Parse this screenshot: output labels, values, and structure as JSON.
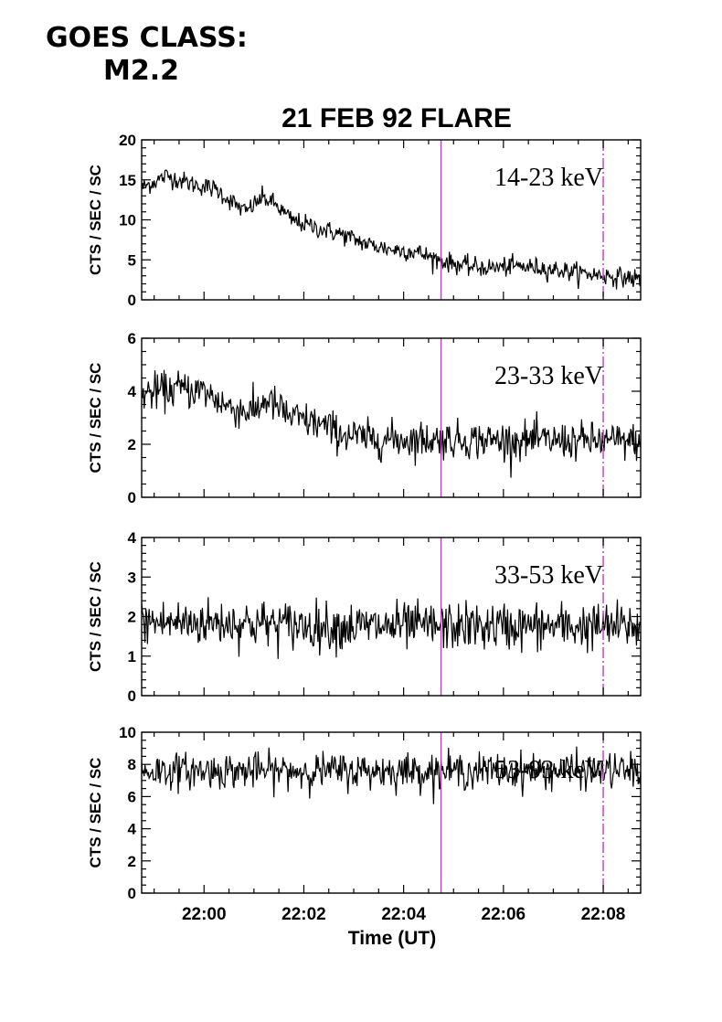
{
  "goes": {
    "label": "GOES CLASS:",
    "value": "M2.2"
  },
  "chart_data": {
    "type": "line",
    "title": "21 FEB 92 FLARE",
    "xlabel": "Time (UT)",
    "xlim": [
      "21:58:45",
      "22:08:45"
    ],
    "xticks": [
      "22:00",
      "22:02",
      "22:04",
      "22:06",
      "22:08"
    ],
    "vlines": [
      {
        "time": "22:04:45",
        "style": "solid",
        "color": "#cc33cc"
      },
      {
        "time": "22:08:00",
        "style": "dash-dot",
        "color": "#cc33cc"
      }
    ],
    "panels": [
      {
        "band": "14-23 keV",
        "ylabel": "CTS / SEC / SC",
        "ylim": [
          0,
          20
        ],
        "yticks": [
          0,
          5,
          10,
          15,
          20
        ],
        "noise": 0.6,
        "profile": [
          [
            "21:58:45",
            14.0
          ],
          [
            "21:59:15",
            15.5
          ],
          [
            "21:59:45",
            14.5
          ],
          [
            "22:00:15",
            13.8
          ],
          [
            "22:00:30",
            12.5
          ],
          [
            "22:00:50",
            11.0
          ],
          [
            "22:01:10",
            12.8
          ],
          [
            "22:01:25",
            12.0
          ],
          [
            "22:01:45",
            10.0
          ],
          [
            "22:02:15",
            9.0
          ],
          [
            "22:02:45",
            8.2
          ],
          [
            "22:03:15",
            7.0
          ],
          [
            "22:03:45",
            6.3
          ],
          [
            "22:04:15",
            6.0
          ],
          [
            "22:04:45",
            4.9
          ],
          [
            "22:05:15",
            4.2
          ],
          [
            "22:05:45",
            4.0
          ],
          [
            "22:06:15",
            4.2
          ],
          [
            "22:06:45",
            4.0
          ],
          [
            "22:07:15",
            3.6
          ],
          [
            "22:07:45",
            3.2
          ],
          [
            "22:08:15",
            2.9
          ],
          [
            "22:08:45",
            2.6
          ]
        ]
      },
      {
        "band": "23-33 keV",
        "ylabel": "CTS / SEC / SC",
        "ylim": [
          0,
          6
        ],
        "yticks": [
          0,
          2,
          4,
          6
        ],
        "noise": 0.35,
        "profile": [
          [
            "21:58:45",
            3.9
          ],
          [
            "21:59:30",
            4.1
          ],
          [
            "22:00:00",
            4.0
          ],
          [
            "22:00:30",
            3.4
          ],
          [
            "22:01:00",
            3.2
          ],
          [
            "22:01:15",
            3.7
          ],
          [
            "22:01:45",
            3.0
          ],
          [
            "22:02:15",
            2.8
          ],
          [
            "22:02:45",
            2.4
          ],
          [
            "22:03:15",
            2.2
          ],
          [
            "22:08:45",
            2.1
          ]
        ]
      },
      {
        "band": "33-53 keV",
        "ylabel": "CTS / SEC / SC",
        "ylim": [
          0,
          4
        ],
        "yticks": [
          0,
          1,
          2,
          3,
          4
        ],
        "noise": 0.3,
        "profile": [
          [
            "21:58:45",
            1.85
          ],
          [
            "22:00:30",
            1.85
          ],
          [
            "22:02:30",
            1.75
          ],
          [
            "22:08:45",
            1.75
          ]
        ]
      },
      {
        "band": "53-93 keV",
        "ylabel": "CTS / SEC / SC",
        "ylim": [
          0,
          10
        ],
        "yticks": [
          0,
          2,
          4,
          6,
          8,
          10
        ],
        "noise": 0.55,
        "profile": [
          [
            "21:58:45",
            7.6
          ],
          [
            "22:08:45",
            7.6
          ]
        ]
      }
    ]
  }
}
